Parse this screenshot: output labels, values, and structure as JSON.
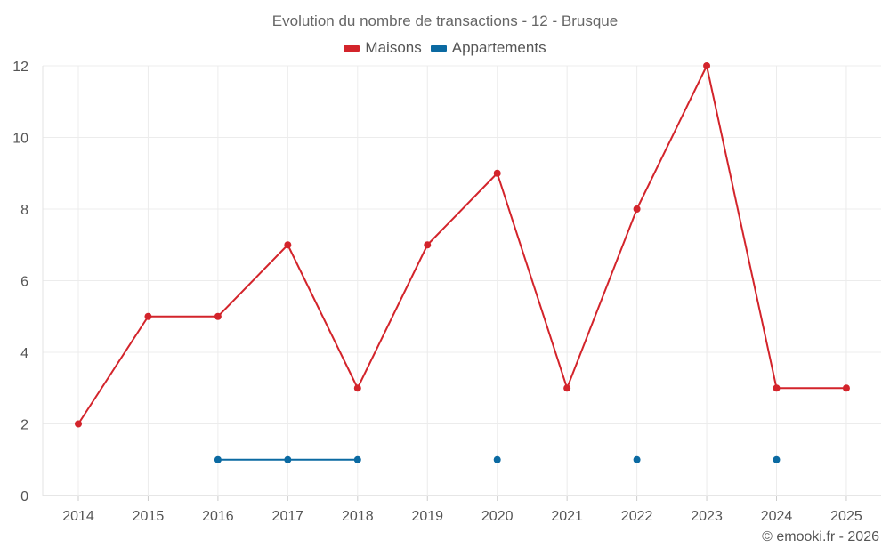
{
  "chart_data": {
    "type": "line",
    "title": "Evolution du nombre de transactions - 12 - Brusque",
    "categories": [
      "2014",
      "2015",
      "2016",
      "2017",
      "2018",
      "2019",
      "2020",
      "2021",
      "2022",
      "2023",
      "2024",
      "2025"
    ],
    "ylim": [
      0,
      12
    ],
    "yticks": [
      0,
      2,
      4,
      6,
      8,
      10,
      12
    ],
    "xlabel": "",
    "ylabel": "",
    "grid": true,
    "legend_position": "top-center",
    "series": [
      {
        "name": "Maisons",
        "color": "#d3242b",
        "values": [
          2,
          5,
          5,
          7,
          3,
          7,
          9,
          3,
          8,
          12,
          3,
          3
        ]
      },
      {
        "name": "Appartements",
        "color": "#0b6aa2",
        "values": [
          null,
          null,
          1,
          1,
          1,
          null,
          1,
          null,
          1,
          null,
          1,
          null
        ]
      }
    ]
  },
  "credit": "© emooki.fr - 2026"
}
